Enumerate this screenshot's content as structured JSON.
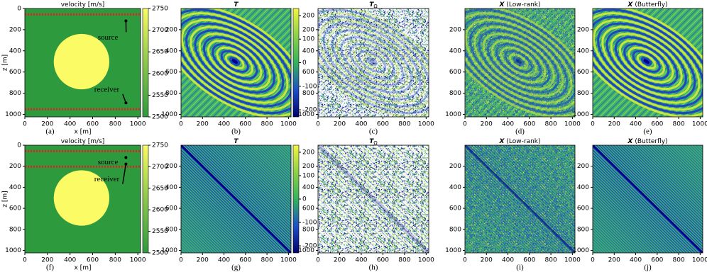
{
  "panels": [
    {
      "label": "(a)",
      "title": "velocity [m/s]",
      "xlabel": "x [m]",
      "ylabel": "z [m]",
      "xlim": [
        0,
        1024
      ],
      "ylim": [
        0,
        1024
      ],
      "xticks": [
        0,
        200,
        400,
        600,
        800,
        1000
      ],
      "yticks": [
        0,
        200,
        400,
        600,
        800,
        1000
      ],
      "colorbar": {
        "lim": [
          2500,
          2750
        ],
        "ticks": [
          2500,
          2550,
          2600,
          2650,
          2700,
          2750
        ]
      },
      "annotations": [
        "source",
        "receiver"
      ]
    },
    {
      "label": "(b)",
      "title": "T",
      "xlim": [
        0,
        1024
      ],
      "ylim": [
        0,
        1024
      ],
      "xticks": [
        0,
        200,
        400,
        600,
        800,
        1000
      ],
      "yticks": [
        200,
        400,
        600,
        800,
        1000
      ],
      "colorbar": {
        "lim": [
          -230,
          230
        ],
        "ticks": [
          -200,
          -100,
          0,
          100,
          200
        ]
      }
    },
    {
      "label": "(c)",
      "title": "T",
      "title_sub": "Ω",
      "xlim": [
        0,
        1024
      ],
      "ylim": [
        0,
        1024
      ],
      "xticks": [
        0,
        200,
        400,
        600,
        800,
        1000
      ],
      "yticks": [
        200,
        400,
        600,
        800,
        1000
      ]
    },
    {
      "label": "(d)",
      "title": "X",
      "title_note": "(Low-rank)",
      "xlim": [
        0,
        1024
      ],
      "ylim": [
        0,
        1024
      ],
      "xticks": [
        0,
        200,
        400,
        600,
        800,
        1000
      ],
      "yticks": [
        200,
        400,
        600,
        800,
        1000
      ]
    },
    {
      "label": "(e)",
      "title": "X",
      "title_note": "(Butterfly)",
      "xlim": [
        0,
        1024
      ],
      "ylim": [
        0,
        1024
      ],
      "xticks": [
        0,
        200,
        400,
        600,
        800,
        1000
      ],
      "yticks": [
        200,
        400,
        600,
        800,
        1000
      ]
    },
    {
      "label": "(f)",
      "title": "velocity [m/s]",
      "xlabel": "x [m]",
      "ylabel": "z [m]",
      "xlim": [
        0,
        1024
      ],
      "ylim": [
        0,
        1024
      ],
      "xticks": [
        0,
        200,
        400,
        600,
        800,
        1000
      ],
      "yticks": [
        0,
        200,
        400,
        600,
        800,
        1000
      ],
      "colorbar": {
        "lim": [
          2500,
          2750
        ],
        "ticks": [
          2500,
          2550,
          2600,
          2650,
          2700,
          2750
        ]
      },
      "annotations": [
        "source",
        "receiver"
      ]
    },
    {
      "label": "(g)",
      "title": "T",
      "xlim": [
        0,
        1024
      ],
      "ylim": [
        0,
        1024
      ],
      "xticks": [
        0,
        200,
        400,
        600,
        800,
        1000
      ],
      "yticks": [
        200,
        400,
        600,
        800,
        1000
      ],
      "colorbar": {
        "lim": [
          -230,
          230
        ],
        "ticks": [
          -200,
          -100,
          0,
          100,
          200
        ]
      }
    },
    {
      "label": "(h)",
      "title": "T",
      "title_sub": "Ω",
      "xlim": [
        0,
        1024
      ],
      "ylim": [
        0,
        1024
      ],
      "xticks": [
        0,
        200,
        400,
        600,
        800,
        1000
      ],
      "yticks": [
        200,
        400,
        600,
        800,
        1000
      ]
    },
    {
      "label": "(i)",
      "title": "X",
      "title_note": "(Low-rank)",
      "xlim": [
        0,
        1024
      ],
      "ylim": [
        0,
        1024
      ],
      "xticks": [
        0,
        200,
        400,
        600,
        800,
        1000
      ],
      "yticks": [
        200,
        400,
        600,
        800,
        1000
      ]
    },
    {
      "label": "(j)",
      "title": "X",
      "title_note": "(Butterfly)",
      "xlim": [
        0,
        1024
      ],
      "ylim": [
        0,
        1024
      ],
      "xticks": [
        0,
        200,
        400,
        600,
        800,
        1000
      ],
      "yticks": [
        200,
        400,
        600,
        800,
        1000
      ]
    }
  ]
}
